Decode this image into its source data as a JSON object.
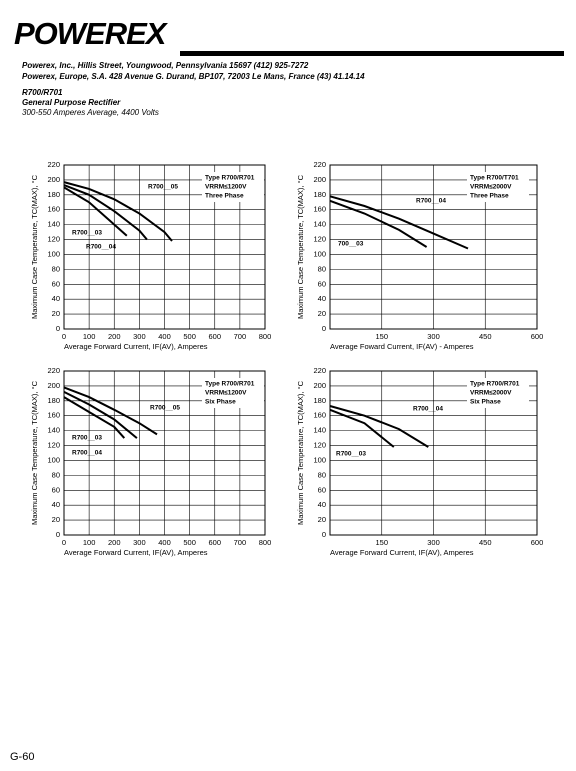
{
  "header": {
    "logo": "POWEREX",
    "address_us": "Powerex, Inc., Hillis Street, Youngwood, Pennsylvania 15697 (412) 925-7272",
    "address_eu": "Powerex, Europe, S.A. 428 Avenue G. Durand, BP107, 72003 Le Mans, France (43) 41.14.14",
    "part": "R700/R701",
    "description": "General Purpose Rectifier",
    "rating": "300-550 Amperes Average, 4400 Volts"
  },
  "chart_data": [
    {
      "type": "line",
      "notes": [
        "Type R700/R701",
        "VRRM≤1200V",
        "Three Phase"
      ],
      "xlabel": "Average Forward Current, IF(AV), Amperes",
      "ylabel": "Maximum Case Temperature, TC(MAX), °C",
      "xlim": [
        0,
        800
      ],
      "xticks": [
        0,
        100,
        200,
        300,
        400,
        500,
        600,
        700,
        800
      ],
      "ylim": [
        0,
        220
      ],
      "yticks": [
        0,
        20,
        40,
        60,
        80,
        100,
        120,
        140,
        160,
        180,
        200,
        220
      ],
      "grid": true,
      "series": [
        {
          "name": "R700__05",
          "color": "#000000",
          "x": [
            0,
            100,
            200,
            300,
            400,
            430
          ],
          "values": [
            197,
            188,
            174,
            155,
            130,
            118
          ]
        },
        {
          "name": "R700__03",
          "color": "#000000",
          "x": [
            0,
            100,
            200,
            250
          ],
          "values": [
            190,
            170,
            140,
            125
          ]
        },
        {
          "name": "R700__04",
          "color": "#000000",
          "x": [
            0,
            100,
            200,
            300,
            330
          ],
          "values": [
            193,
            180,
            158,
            132,
            120
          ]
        }
      ]
    },
    {
      "type": "line",
      "notes": [
        "Type R700/T701",
        "VRRM≤2000V",
        "Three Phase"
      ],
      "xlabel": "Average Foward Current, IF(AV) - Amperes",
      "ylabel": "Maximum Case Temperature, TC(MAX), °C",
      "xlim": [
        0,
        600
      ],
      "xticks": [
        150,
        300,
        450,
        600
      ],
      "ylim": [
        0,
        220
      ],
      "yticks": [
        0,
        20,
        40,
        60,
        80,
        100,
        120,
        140,
        160,
        180,
        200,
        220
      ],
      "grid": true,
      "series": [
        {
          "name": "R700__04",
          "color": "#000000",
          "x": [
            0,
            100,
            200,
            300,
            400
          ],
          "values": [
            178,
            165,
            148,
            128,
            108
          ]
        },
        {
          "name": "700__03",
          "color": "#000000",
          "x": [
            0,
            100,
            200,
            280
          ],
          "values": [
            172,
            155,
            133,
            110
          ]
        }
      ]
    },
    {
      "type": "line",
      "notes": [
        "Type R700/R701",
        "VRRM≤1200V",
        "Six Phase"
      ],
      "xlabel": "Average Forward Current, IF(AV), Amperes",
      "ylabel": "Maximum Case Temperature, TC(MAX), °C",
      "xlim": [
        0,
        800
      ],
      "xticks": [
        0,
        100,
        200,
        300,
        400,
        500,
        600,
        700,
        800
      ],
      "ylim": [
        0,
        220
      ],
      "yticks": [
        0,
        20,
        40,
        60,
        80,
        100,
        120,
        140,
        160,
        180,
        200,
        220
      ],
      "grid": true,
      "series": [
        {
          "name": "R700__05",
          "color": "#000000",
          "x": [
            0,
            100,
            200,
            300,
            370
          ],
          "values": [
            198,
            185,
            168,
            150,
            135
          ]
        },
        {
          "name": "R700__03",
          "color": "#000000",
          "x": [
            0,
            100,
            200,
            240
          ],
          "values": [
            185,
            165,
            145,
            130
          ]
        },
        {
          "name": "R700__04",
          "color": "#000000",
          "x": [
            0,
            100,
            200,
            290
          ],
          "values": [
            192,
            175,
            155,
            130
          ]
        }
      ]
    },
    {
      "type": "line",
      "notes": [
        "Type R700/R701",
        "VRRM≤2000V",
        "Six Phase"
      ],
      "xlabel": "Average Forward Current, IF(AV), Amperes",
      "ylabel": "Maximum Case Temperature, TC(MAX), °C",
      "xlim": [
        0,
        600
      ],
      "xticks": [
        150,
        300,
        450,
        600
      ],
      "ylim": [
        0,
        220
      ],
      "yticks": [
        0,
        20,
        40,
        60,
        80,
        100,
        120,
        140,
        160,
        180,
        200,
        220
      ],
      "grid": true,
      "series": [
        {
          "name": "R700__04",
          "color": "#000000",
          "x": [
            0,
            100,
            200,
            285
          ],
          "values": [
            173,
            160,
            142,
            118
          ]
        },
        {
          "name": "R700__03",
          "color": "#000000",
          "x": [
            0,
            100,
            185
          ],
          "values": [
            168,
            150,
            118
          ]
        }
      ]
    }
  ],
  "footer": {
    "page": "G-60"
  }
}
